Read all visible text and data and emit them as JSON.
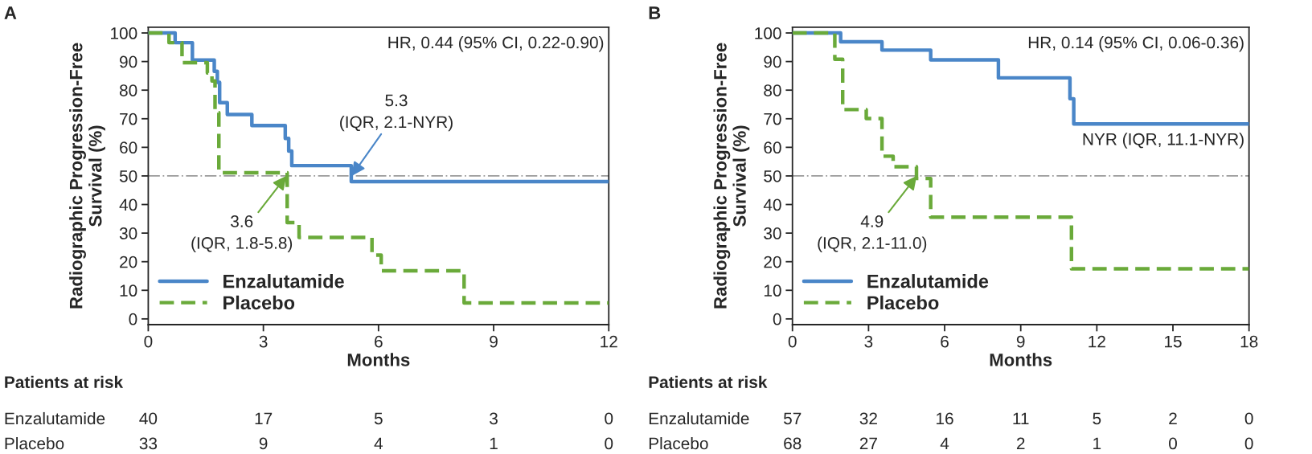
{
  "chart_data": [
    {
      "type": "step",
      "title": "A",
      "xlabel": "Months",
      "ylabel": "Radiographic Progression-Free\nSurvival (%)",
      "xlim": [
        0,
        12
      ],
      "xticks": [
        0,
        3,
        6,
        9,
        12
      ],
      "ylim": [
        -2,
        102
      ],
      "yticks": [
        0,
        10,
        20,
        30,
        40,
        50,
        60,
        70,
        80,
        90,
        100
      ],
      "legend": "bottom left",
      "series": [
        {
          "name": "Enzalutamide",
          "color": "#4a86c8",
          "line_style": "solid",
          "x": [
            0,
            0.7,
            1.15,
            1.72,
            1.8,
            1.86,
            2.06,
            2.7,
            3.57,
            3.66,
            3.74,
            5.29,
            12
          ],
          "values": [
            100,
            96.6,
            90.5,
            86.6,
            82.7,
            75.6,
            71.5,
            67.6,
            63.1,
            58.7,
            53.6,
            48.0,
            48.0
          ]
        },
        {
          "name": "Placebo",
          "color": "#6aaa3a",
          "line_style": "dashed",
          "x": [
            0,
            0.54,
            0.88,
            1.54,
            1.66,
            1.74,
            1.84,
            3.62,
            3.93,
            5.83,
            6.07,
            8.23,
            12
          ],
          "values": [
            100,
            96.6,
            89.6,
            86.0,
            83.2,
            72.1,
            51.1,
            33.7,
            28.5,
            22.3,
            16.8,
            5.6,
            5.6
          ]
        }
      ],
      "ref_lines": [
        {
          "axis": "y",
          "value": 50,
          "color": "#999999",
          "line_style": "dashdot"
        }
      ],
      "annotations": [
        "HR, 0.44 (95% CI, 0.22-0.90)",
        {
          "text": "5.3\n(IQR, 2.1-NYR)",
          "x": 5.3,
          "y": 50
        },
        {
          "text": "3.6\n(IQR, 1.8-5.8)",
          "x": 3.6,
          "y": 50
        },
        "Patients at risk",
        "Enzalutamide",
        "40",
        "17",
        "5",
        "3",
        "0",
        "Placebo",
        "33",
        "9",
        "4",
        "1",
        "0"
      ]
    },
    {
      "type": "step",
      "title": "B",
      "xlabel": "Months",
      "ylabel": "Radiographic Progression-Free\nSurvival (%)",
      "xlim": [
        0,
        18
      ],
      "xticks": [
        0,
        3,
        6,
        9,
        12,
        15,
        18
      ],
      "ylim": [
        -2,
        102
      ],
      "yticks": [
        0,
        10,
        20,
        30,
        40,
        50,
        60,
        70,
        80,
        90,
        100
      ],
      "legend": "bottom left",
      "series": [
        {
          "name": "Enzalutamide",
          "color": "#4a86c8",
          "line_style": "solid",
          "x": [
            0,
            1.9,
            3.53,
            5.45,
            8.12,
            10.94,
            11.09,
            18
          ],
          "values": [
            100,
            96.9,
            94.0,
            90.6,
            84.3,
            77.0,
            68.2,
            68.2
          ]
        },
        {
          "name": "Placebo",
          "color": "#6aaa3a",
          "line_style": "dashed",
          "x": [
            0,
            1.67,
            1.98,
            2.91,
            3.53,
            3.97,
            4.89,
            5.45,
            11.0,
            18
          ],
          "values": [
            100,
            90.8,
            73.2,
            70.1,
            56.9,
            53.2,
            49.1,
            35.6,
            17.5,
            17.5
          ]
        }
      ],
      "ref_lines": [
        {
          "axis": "y",
          "value": 50,
          "color": "#999999",
          "line_style": "dashdot"
        }
      ],
      "annotations": [
        "HR, 0.14 (95% CI, 0.06-0.36)",
        {
          "text": "NYR (IQR, 11.1-NYR)",
          "x": 18,
          "y": 68.2
        },
        {
          "text": "4.9\n(IQR, 2.1-11.0)",
          "x": 4.9,
          "y": 50
        },
        "Patients at risk",
        "Enzalutamide",
        "57",
        "32",
        "16",
        "11",
        "5",
        "2",
        "0",
        "Placebo",
        "68",
        "27",
        "4",
        "2",
        "1",
        "0",
        "0"
      ]
    }
  ]
}
